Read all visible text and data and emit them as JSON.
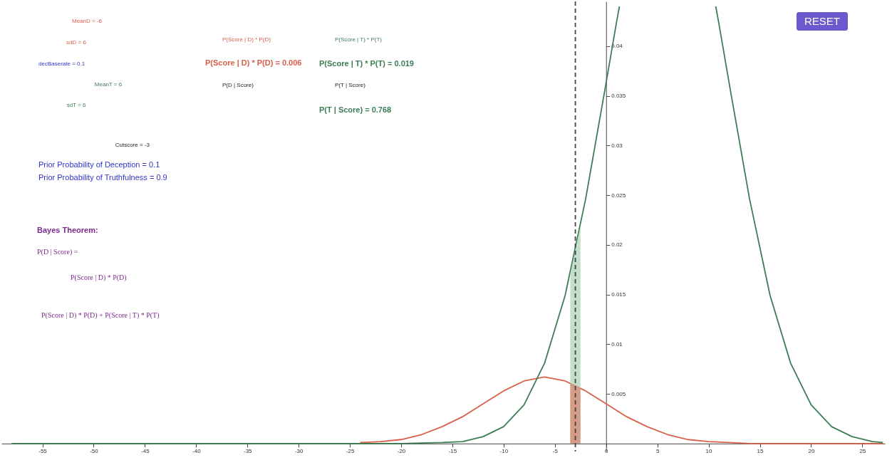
{
  "chart_data": {
    "type": "line",
    "series": [
      {
        "color": "#d9604a",
        "x": [
          -24,
          -22,
          -20,
          -18,
          -16,
          -14,
          -12,
          -10,
          -8,
          -6,
          -4,
          -2,
          0,
          2,
          4,
          6,
          8,
          10,
          12,
          14,
          16,
          20,
          27
        ],
        "values": [
          0.0001,
          0.0002,
          0.0004,
          0.0009,
          0.0017,
          0.0027,
          0.004,
          0.0053,
          0.0063,
          0.0067,
          0.0063,
          0.0053,
          0.004,
          0.0027,
          0.0017,
          0.0009,
          0.0004,
          0.0002,
          0.0001,
          0,
          0,
          0,
          0
        ]
      },
      {
        "color": "#3d7d55",
        "x": [
          -58,
          -30,
          -20,
          -16,
          -14,
          -12,
          -10,
          -8,
          -6,
          -4,
          -2,
          0,
          1,
          1.3,
          6,
          10.7,
          11,
          12,
          14,
          16,
          18,
          20,
          22,
          24,
          26,
          27
        ],
        "values": [
          0,
          0,
          0,
          0.0001,
          0.0002,
          0.0007,
          0.0017,
          0.0039,
          0.0081,
          0.0149,
          0.0246,
          0.0363,
          0.0423,
          0.044,
          null,
          0.044,
          0.0423,
          0.0363,
          0.0246,
          0.0149,
          0.0081,
          0.0039,
          0.0017,
          0.0007,
          0.0002,
          0.0001
        ]
      },
      {
        "type": "area",
        "color": "#b5d6bf",
        "x": [
          -3.5,
          -2.5
        ],
        "values": [
          0.01708,
          0.02193
        ]
      },
      {
        "type": "area",
        "color": "#d98a74",
        "x": [
          -3.5,
          -2.5
        ],
        "values": [
          0.0061,
          0.00561
        ]
      }
    ],
    "xlim": [
      -59,
      27.2
    ],
    "ylim": [
      -0.0008,
      0.0445
    ],
    "xticks": [
      -55,
      -50,
      -45,
      -40,
      -35,
      -30,
      -25,
      -20,
      -15,
      -10,
      -5,
      0,
      5,
      10,
      15,
      20,
      25
    ],
    "yticks": [
      0.005,
      0.01,
      0.015,
      0.02,
      0.025,
      0.03,
      0.035,
      0.04
    ],
    "ref_lines": [
      {
        "axis": "x",
        "value": -3,
        "color": "#444444",
        "line_style": "dashed"
      }
    ],
    "grid": false,
    "annotations": [
      "MeanD = -6",
      "sdD = 6",
      "decBaserate = 0.1",
      "MeanT = 6",
      "sdT = 6",
      "Cutscore = -3",
      "Prior Probability of Deception = 0.1",
      "Prior Probability of Truthfulness = 0.9",
      "P(Score | D) * P(D)",
      "P(Score | D) * P(D) = 0.006",
      "P(D | Score)",
      "P(Score | T) * P(T)",
      "P(Score | T) * P(T) = 0.019",
      "P(T | Score)",
      "P(T | Score) = 0.768",
      "Bayes Theorem:",
      "P(D | Score) =",
      "P(Score | D) * P(D)",
      "P(Score | D) * P(D) + P(Score | T) * P(T)",
      "RESET"
    ]
  }
}
